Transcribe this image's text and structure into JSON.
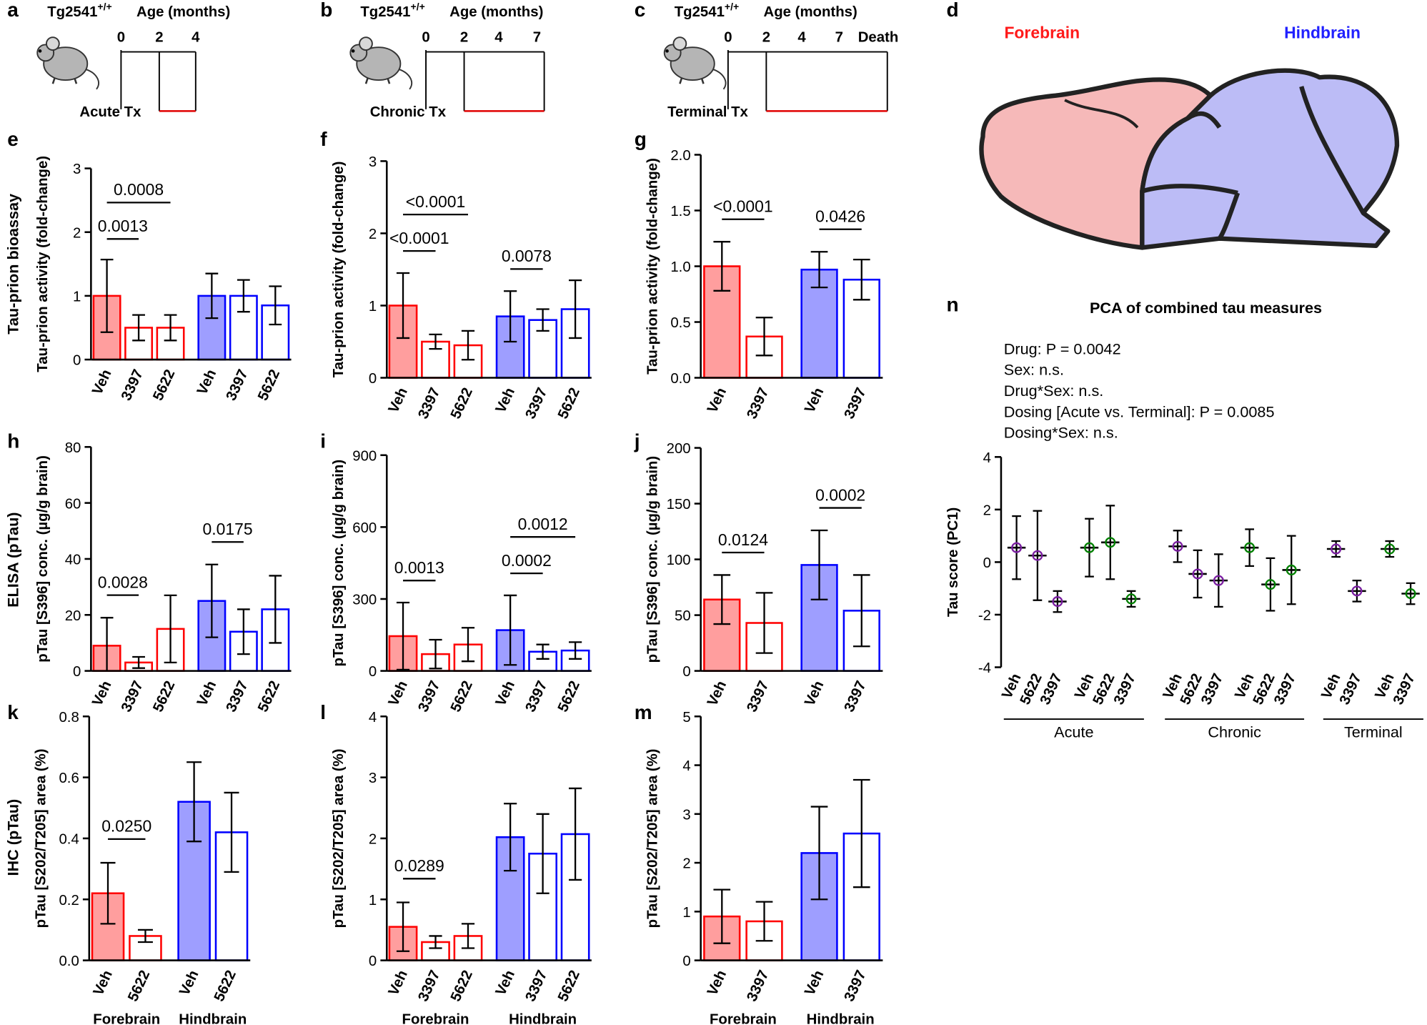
{
  "panels": {
    "timelines": [
      {
        "label": "a",
        "strain": "Tg2541",
        "genotype": "+/+",
        "age_label": "Age (months)",
        "ages": [
          0,
          2,
          4
        ],
        "treatment": "Acute Tx"
      },
      {
        "label": "b",
        "strain": "Tg2541",
        "genotype": "+/+",
        "age_label": "Age (months)",
        "ages": [
          0,
          2,
          4,
          7
        ],
        "treatment": "Chronic Tx"
      },
      {
        "label": "c",
        "strain": "Tg2541",
        "genotype": "+/+",
        "age_label": "Age (months)",
        "ages": [
          0,
          2,
          4,
          7,
          "Death"
        ],
        "treatment": "Terminal Tx"
      }
    ],
    "brain": {
      "label": "d",
      "forebrain": "Forebrain",
      "hindbrain": "Hindbrain"
    }
  },
  "chart_data": [
    {
      "type": "bar",
      "label": "e",
      "row_label": "Tau-prion bioassay",
      "ylabel": "Tau-prion activity (fold-change)",
      "categories": [
        "Veh",
        "3397",
        "5622",
        "Veh",
        "3397",
        "5622"
      ],
      "values": [
        1.0,
        0.5,
        0.5,
        1.0,
        1.0,
        0.85
      ],
      "errors": [
        0.57,
        0.2,
        0.2,
        0.35,
        0.25,
        0.3
      ],
      "colors": [
        "#ff0000",
        "#ff0000",
        "#ff0000",
        "#0000ff",
        "#0000ff",
        "#0000ff"
      ],
      "filled": [
        true,
        false,
        false,
        true,
        false,
        false
      ],
      "ylim": [
        0,
        3
      ],
      "yticks": [
        0,
        1,
        2,
        3
      ],
      "annotations": [
        {
          "text": "0.0013",
          "between": [
            0,
            1
          ]
        },
        {
          "text": "0.0008",
          "between": [
            0,
            2
          ]
        }
      ]
    },
    {
      "type": "bar",
      "label": "f",
      "ylabel": "Tau-prion activity (fold-change)",
      "categories": [
        "Veh",
        "3397",
        "5622",
        "Veh",
        "3397",
        "5622"
      ],
      "values": [
        1.0,
        0.5,
        0.45,
        0.85,
        0.8,
        0.95
      ],
      "errors": [
        0.45,
        0.1,
        0.2,
        0.35,
        0.15,
        0.4
      ],
      "colors": [
        "#ff0000",
        "#ff0000",
        "#ff0000",
        "#0000ff",
        "#0000ff",
        "#0000ff"
      ],
      "filled": [
        true,
        false,
        false,
        true,
        false,
        false
      ],
      "ylim": [
        0,
        3
      ],
      "yticks": [
        0,
        1,
        2,
        3
      ],
      "annotations": [
        {
          "text": "<0.0001",
          "between": [
            0,
            1
          ]
        },
        {
          "text": "<0.0001",
          "between": [
            0,
            2
          ]
        },
        {
          "text": "0.0078",
          "between": [
            3,
            4
          ]
        }
      ]
    },
    {
      "type": "bar",
      "label": "g",
      "ylabel": "Tau-prion activity (fold-change)",
      "categories": [
        "Veh",
        "3397",
        "Veh",
        "3397"
      ],
      "values": [
        1.0,
        0.37,
        0.97,
        0.88
      ],
      "errors": [
        0.22,
        0.17,
        0.16,
        0.18
      ],
      "colors": [
        "#ff0000",
        "#ff0000",
        "#0000ff",
        "#0000ff"
      ],
      "filled": [
        true,
        false,
        true,
        false
      ],
      "ylim": [
        0,
        2
      ],
      "yticks": [
        {
          "value": 0,
          "label": "0.0"
        },
        0.5,
        {
          "value": 1,
          "label": "1.0"
        },
        1.5,
        {
          "value": 2,
          "label": "2.0"
        }
      ],
      "annotations": [
        {
          "text": "<0.0001",
          "between": [
            0,
            1
          ]
        },
        {
          "text": "0.0426",
          "between": [
            2,
            3
          ]
        }
      ]
    },
    {
      "type": "bar",
      "label": "h",
      "row_label": "ELISA (pTau)",
      "ylabel": "pTau [S396] conc. (µg/g brain)",
      "categories": [
        "Veh",
        "3397",
        "5622",
        "Veh",
        "3397",
        "5622"
      ],
      "values": [
        9,
        3,
        15,
        25,
        14,
        22
      ],
      "errors": [
        10,
        2,
        12,
        13,
        8,
        12
      ],
      "colors": [
        "#ff0000",
        "#ff0000",
        "#ff0000",
        "#0000ff",
        "#0000ff",
        "#0000ff"
      ],
      "filled": [
        true,
        false,
        false,
        true,
        false,
        false
      ],
      "ylim": [
        0,
        80
      ],
      "yticks": [
        0,
        20,
        40,
        60,
        80
      ],
      "annotations": [
        {
          "text": "0.0028",
          "between": [
            0,
            1
          ]
        },
        {
          "text": "0.0175",
          "between": [
            3,
            4
          ]
        }
      ]
    },
    {
      "type": "bar",
      "label": "i",
      "ylabel": "pTau [S396] conc. (µg/g brain)",
      "categories": [
        "Veh",
        "3397",
        "5622",
        "Veh",
        "3397",
        "5622"
      ],
      "values": [
        145,
        70,
        110,
        170,
        80,
        85
      ],
      "errors": [
        140,
        60,
        70,
        145,
        30,
        35
      ],
      "colors": [
        "#ff0000",
        "#ff0000",
        "#ff0000",
        "#0000ff",
        "#0000ff",
        "#0000ff"
      ],
      "filled": [
        true,
        false,
        false,
        true,
        false,
        false
      ],
      "ylim": [
        0,
        900
      ],
      "yticks": [
        0,
        300,
        600,
        900
      ],
      "annotations": [
        {
          "text": "0.0013",
          "between": [
            0,
            1
          ]
        },
        {
          "text": "0.0002",
          "between": [
            3,
            4
          ]
        },
        {
          "text": "0.0012",
          "between": [
            3,
            5
          ]
        }
      ]
    },
    {
      "type": "bar",
      "label": "j",
      "ylabel": "pTau [S396] conc. (µg/g brain)",
      "categories": [
        "Veh",
        "3397",
        "Veh",
        "3397"
      ],
      "values": [
        64,
        43,
        95,
        54
      ],
      "errors": [
        22,
        27,
        31,
        32
      ],
      "colors": [
        "#ff0000",
        "#ff0000",
        "#0000ff",
        "#0000ff"
      ],
      "filled": [
        true,
        false,
        true,
        false
      ],
      "ylim": [
        0,
        200
      ],
      "yticks": [
        0,
        50,
        100,
        150,
        200
      ],
      "annotations": [
        {
          "text": "0.0124",
          "between": [
            0,
            1
          ]
        },
        {
          "text": "0.0002",
          "between": [
            2,
            3
          ]
        }
      ]
    },
    {
      "type": "bar",
      "label": "k",
      "row_label": "IHC (pTau)",
      "ylabel": "pTau [S202/T205] area (%)",
      "categories": [
        "Veh",
        "5622",
        "Veh",
        "5622"
      ],
      "values": [
        0.22,
        0.08,
        0.52,
        0.42
      ],
      "errors": [
        0.1,
        0.02,
        0.13,
        0.13
      ],
      "colors": [
        "#ff0000",
        "#ff0000",
        "#0000ff",
        "#0000ff"
      ],
      "filled": [
        true,
        false,
        true,
        false
      ],
      "ylim": [
        0,
        0.8
      ],
      "yticks": [
        {
          "value": 0,
          "label": "0.0"
        },
        0.2,
        0.4,
        0.6,
        0.8
      ],
      "annotations": [
        {
          "text": "0.0250",
          "between": [
            0,
            1
          ]
        }
      ],
      "group_labels": [
        "Forebrain",
        "Hindbrain"
      ]
    },
    {
      "type": "bar",
      "label": "l",
      "ylabel": "pTau [S202/T205] area (%)",
      "categories": [
        "Veh",
        "3397",
        "5622",
        "Veh",
        "3397",
        "5622"
      ],
      "values": [
        0.55,
        0.3,
        0.4,
        2.02,
        1.75,
        2.07
      ],
      "errors": [
        0.4,
        0.1,
        0.2,
        0.55,
        0.65,
        0.75
      ],
      "colors": [
        "#ff0000",
        "#ff0000",
        "#ff0000",
        "#0000ff",
        "#0000ff",
        "#0000ff"
      ],
      "filled": [
        true,
        false,
        false,
        true,
        false,
        false
      ],
      "ylim": [
        0,
        4
      ],
      "yticks": [
        0,
        1,
        2,
        3,
        4
      ],
      "annotations": [
        {
          "text": "0.0289",
          "between": [
            0,
            1
          ]
        }
      ],
      "group_labels": [
        "Forebrain",
        "Hindbrain"
      ]
    },
    {
      "type": "bar",
      "label": "m",
      "ylabel": "pTau [S202/T205] area (%)",
      "categories": [
        "Veh",
        "3397",
        "Veh",
        "3397"
      ],
      "values": [
        0.9,
        0.8,
        2.2,
        2.6
      ],
      "errors": [
        0.55,
        0.4,
        0.95,
        1.1
      ],
      "colors": [
        "#ff0000",
        "#ff0000",
        "#0000ff",
        "#0000ff"
      ],
      "filled": [
        true,
        false,
        true,
        false
      ],
      "ylim": [
        0,
        5
      ],
      "yticks": [
        0,
        1,
        2,
        3,
        4,
        5
      ],
      "annotations": [],
      "group_labels": [
        "Forebrain",
        "Hindbrain"
      ]
    },
    {
      "type": "meansd",
      "label": "n",
      "title": "PCA of combined tau measures",
      "stats": [
        "Drug: P = 0.0042",
        "Sex: n.s.",
        "Drug*Sex: n.s.",
        "Dosing [Acute vs. Terminal]: P = 0.0085",
        "Dosing*Sex: n.s."
      ],
      "ylabel": "Tau score (PC1)",
      "categories": [
        "Veh",
        "5622",
        "3397",
        "Veh",
        "5622",
        "3397",
        "Veh",
        "5622",
        "3397",
        "Veh",
        "5622",
        "3397",
        "Veh",
        "3397",
        "Veh",
        "3397"
      ],
      "values": [
        0.55,
        0.25,
        -1.5,
        0.55,
        0.75,
        -1.4,
        0.6,
        -0.45,
        -0.7,
        0.55,
        -0.85,
        -0.3,
        0.5,
        -1.1,
        0.5,
        -1.2
      ],
      "errors": [
        1.2,
        1.7,
        0.4,
        1.1,
        1.4,
        0.3,
        0.6,
        0.9,
        1.0,
        0.7,
        1.0,
        1.3,
        0.3,
        0.4,
        0.3,
        0.4
      ],
      "colors": [
        "#7b1fa2",
        "#7b1fa2",
        "#7b1fa2",
        "#008000",
        "#008000",
        "#008000",
        "#7b1fa2",
        "#7b1fa2",
        "#7b1fa2",
        "#008000",
        "#008000",
        "#008000",
        "#7b1fa2",
        "#7b1fa2",
        "#008000",
        "#008000"
      ],
      "ylim": [
        -4,
        4
      ],
      "yticks": [
        -4,
        -2,
        0,
        2,
        4
      ],
      "groups": [
        {
          "name": "Acute",
          "span": [
            0,
            5
          ]
        },
        {
          "name": "Chronic",
          "span": [
            6,
            11
          ]
        },
        {
          "name": "Terminal",
          "span": [
            12,
            15
          ]
        }
      ]
    }
  ]
}
